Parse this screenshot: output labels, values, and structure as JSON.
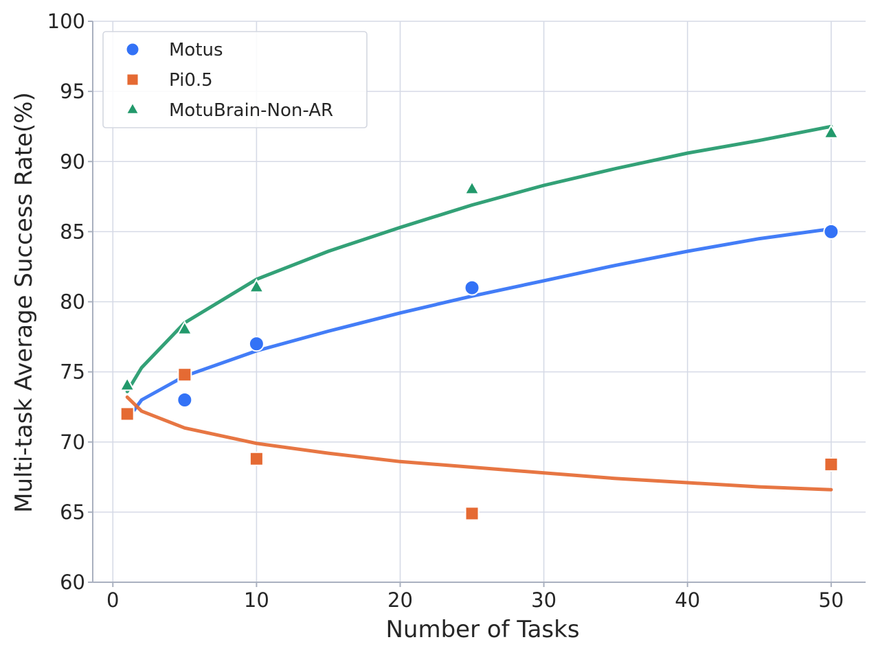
{
  "chart_data": {
    "type": "scatter",
    "title": "",
    "xlabel": "Number of Tasks",
    "ylabel": "Multi-task Average Success Rate(%)",
    "xlim": [
      -1.4,
      52.4
    ],
    "ylim": [
      60,
      100
    ],
    "xticks": [
      0,
      10,
      20,
      30,
      40,
      50
    ],
    "yticks": [
      60,
      65,
      70,
      75,
      80,
      85,
      90,
      95,
      100
    ],
    "grid": true,
    "legend_position": "top-left",
    "series": [
      {
        "name": "Motus",
        "marker": "circle",
        "color": "#3372f6",
        "x": [
          1,
          5,
          10,
          25,
          50
        ],
        "y": [
          72,
          73,
          77,
          81,
          85
        ],
        "fit_curve": {
          "x": [
            1,
            2,
            5,
            10,
            15,
            20,
            25,
            30,
            35,
            40,
            45,
            50
          ],
          "y": [
            71.6,
            73.0,
            74.7,
            76.5,
            77.9,
            79.2,
            80.4,
            81.5,
            82.6,
            83.6,
            84.5,
            85.2
          ]
        }
      },
      {
        "name": "Pi0.5",
        "marker": "square",
        "color": "#e56a33",
        "x": [
          1,
          5,
          10,
          25,
          50
        ],
        "y": [
          72,
          74.8,
          68.8,
          64.9,
          68.4
        ],
        "fit_curve": {
          "x": [
            1,
            2,
            5,
            10,
            15,
            20,
            25,
            30,
            35,
            40,
            45,
            50
          ],
          "y": [
            73.2,
            72.2,
            71.0,
            69.9,
            69.2,
            68.6,
            68.2,
            67.8,
            67.4,
            67.1,
            66.8,
            66.6
          ]
        }
      },
      {
        "name": "MotuBrain-Non-AR",
        "marker": "triangle",
        "color": "#22996b",
        "x": [
          1,
          5,
          10,
          25,
          50
        ],
        "y": [
          74,
          78,
          81,
          88,
          92
        ],
        "fit_curve": {
          "x": [
            1,
            2,
            5,
            10,
            15,
            20,
            25,
            30,
            35,
            40,
            45,
            50
          ],
          "y": [
            73.6,
            75.3,
            78.5,
            81.6,
            83.6,
            85.3,
            86.9,
            88.3,
            89.5,
            90.6,
            91.5,
            92.5
          ]
        }
      }
    ]
  }
}
